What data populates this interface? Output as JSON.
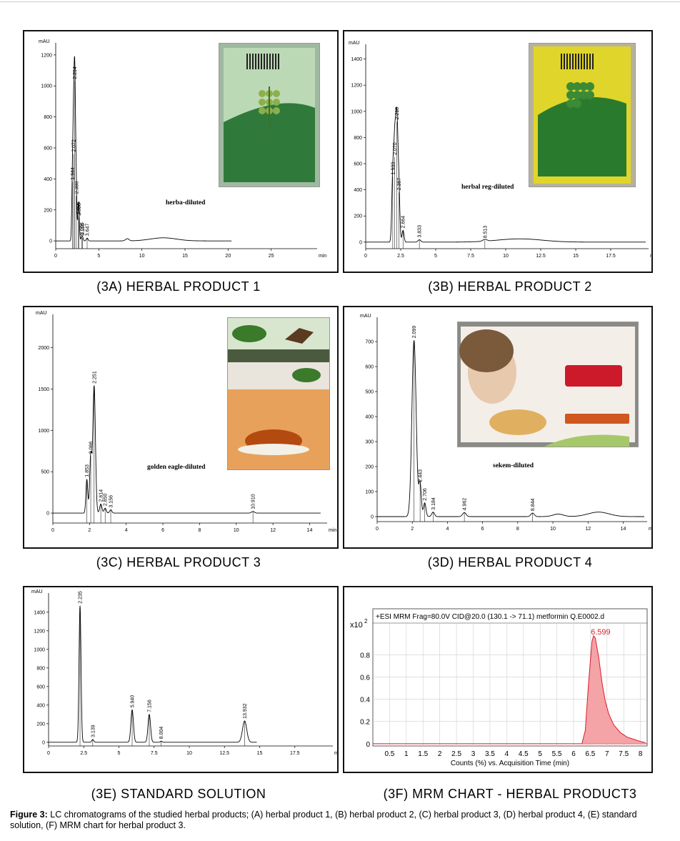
{
  "top_rule_color": "#cccccc",
  "panels": [
    {
      "id": "3A",
      "caption": "(3A) HERBAL PRODUCT 1",
      "yunit": "mAU",
      "xunit": "min",
      "annotation": "herba-diluted",
      "photo": {
        "theme": "green-leaf-box",
        "colors": [
          "#bcd9b5",
          "#2f7a3a"
        ],
        "icon": "herbal-package-photo"
      },
      "chart_data": {
        "type": "line",
        "xlim": [
          0,
          30
        ],
        "ylim": [
          -50,
          1250
        ],
        "xticks": [
          0,
          5,
          10,
          15,
          20,
          25
        ],
        "xtick_labels": [
          "0",
          "5",
          "10",
          "15",
          "20",
          "25"
        ],
        "yticks": [
          0,
          200,
          400,
          600,
          800,
          1000,
          1200
        ],
        "peaks": [
          {
            "x": 1.944,
            "y": 380,
            "w": 0.08,
            "label": "1.944"
          },
          {
            "x": 2.072,
            "y": 560,
            "w": 0.08,
            "label": "2.072"
          },
          {
            "x": 2.214,
            "y": 1030,
            "w": 0.09,
            "label": "2.214"
          },
          {
            "x": 2.388,
            "y": 290,
            "w": 0.07,
            "label": "2.388"
          },
          {
            "x": 2.605,
            "y": 160,
            "w": 0.07,
            "label": "2.605"
          },
          {
            "x": 2.696,
            "y": 150,
            "w": 0.07,
            "label": "2.696"
          },
          {
            "x": 3.006,
            "y": 25,
            "w": 0.08,
            "label": "3.006"
          },
          {
            "x": 3.12,
            "y": 20,
            "w": 0.08,
            "label": "3.120"
          },
          {
            "x": 3.647,
            "y": 18,
            "w": 0.1,
            "label": "3.647"
          },
          {
            "x": 8.3,
            "y": 14,
            "w": 0.2,
            "label": ""
          },
          {
            "x": 12.5,
            "y": 20,
            "w": 1.5,
            "label": ""
          }
        ],
        "xend": 20.4
      }
    },
    {
      "id": "3B",
      "caption": "(3B) HERBAL PRODUCT 2",
      "yunit": "mAU",
      "xunit": "min",
      "annotation": "herbal reg-diluted",
      "photo": {
        "theme": "yellow-box",
        "colors": [
          "#e0d52a",
          "#2a7a2e"
        ],
        "icon": "herbal-package-photo"
      },
      "chart_data": {
        "type": "line",
        "xlim": [
          0,
          20
        ],
        "ylim": [
          -50,
          1480
        ],
        "xticks": [
          0,
          2.5,
          5,
          7.5,
          10,
          12.5,
          15,
          17.5
        ],
        "xtick_labels": [
          "0",
          "2.5",
          "5",
          "7.5",
          "10",
          "12.5",
          "15",
          "17.5"
        ],
        "yticks": [
          0,
          200,
          400,
          600,
          800,
          1000,
          1200,
          1400
        ],
        "peaks": [
          {
            "x": 1.933,
            "y": 500,
            "w": 0.07,
            "label": "1.933"
          },
          {
            "x": 2.07,
            "y": 650,
            "w": 0.07,
            "label": "2.070"
          },
          {
            "x": 2.218,
            "y": 920,
            "w": 0.08,
            "label": "2.218"
          },
          {
            "x": 2.367,
            "y": 380,
            "w": 0.07,
            "label": "2.367"
          },
          {
            "x": 2.664,
            "y": 90,
            "w": 0.07,
            "label": "2.664"
          },
          {
            "x": 3.833,
            "y": 18,
            "w": 0.1,
            "label": "3.833"
          },
          {
            "x": 8.513,
            "y": 14,
            "w": 0.15,
            "label": "8.513"
          },
          {
            "x": 11.0,
            "y": 25,
            "w": 1.6,
            "label": ""
          }
        ],
        "xend": 20.0
      }
    },
    {
      "id": "3C",
      "caption": "(3C) HERBAL PRODUCT 3",
      "yunit": "mAU",
      "xunit": "min",
      "annotation": "golden eagle-diluted",
      "photo": {
        "theme": "herbs-tea-box",
        "colors": [
          "#e8a15a",
          "#3a7a2a"
        ],
        "icon": "herbal-package-photo"
      },
      "chart_data": {
        "type": "line",
        "xlim": [
          0,
          14.8
        ],
        "ylim": [
          -120,
          2350
        ],
        "xticks": [
          0,
          2,
          4,
          6,
          8,
          10,
          12,
          14
        ],
        "xtick_labels": [
          "0",
          "2",
          "4",
          "6",
          "8",
          "10",
          "12",
          "14"
        ],
        "yticks": [
          0,
          500,
          1000,
          1500,
          2000
        ],
        "peaks": [
          {
            "x": 1.853,
            "y": 410,
            "w": 0.05,
            "label": "1.853"
          },
          {
            "x": 2.066,
            "y": 690,
            "w": 0.06,
            "label": "2.066"
          },
          {
            "x": 2.251,
            "y": 1540,
            "w": 0.07,
            "label": "2.251"
          },
          {
            "x": 2.614,
            "y": 110,
            "w": 0.06,
            "label": "2.614"
          },
          {
            "x": 2.85,
            "y": 60,
            "w": 0.06,
            "label": "2.850"
          },
          {
            "x": 3.156,
            "y": 40,
            "w": 0.06,
            "label": "3.156"
          },
          {
            "x": 10.91,
            "y": 20,
            "w": 0.08,
            "label": "10.910"
          }
        ],
        "xend": 14.6
      }
    },
    {
      "id": "3D",
      "caption": "(3D) HERBAL PRODUCT 4",
      "yunit": "mAU",
      "xunit": "min",
      "annotation": "sekem-diluted",
      "photo": {
        "theme": "herbal-tea-box",
        "colors": [
          "#f4eee8",
          "#cc1a2a"
        ],
        "icon": "herbal-package-photo"
      },
      "chart_data": {
        "type": "line",
        "xlim": [
          0,
          15.2
        ],
        "ylim": [
          -20,
          780
        ],
        "xticks": [
          0,
          2,
          4,
          6,
          8,
          10,
          12,
          14
        ],
        "xtick_labels": [
          "0",
          "2",
          "4",
          "6",
          "8",
          "10",
          "12",
          "14"
        ],
        "yticks": [
          0,
          100,
          200,
          300,
          400,
          500,
          600,
          700
        ],
        "peaks": [
          {
            "x": 2.099,
            "y": 705,
            "w": 0.12,
            "label": "2.099"
          },
          {
            "x": 2.443,
            "y": 130,
            "w": 0.07,
            "label": "2.443"
          },
          {
            "x": 2.706,
            "y": 55,
            "w": 0.07,
            "label": "2.706"
          },
          {
            "x": 3.184,
            "y": 18,
            "w": 0.08,
            "label": "3.184"
          },
          {
            "x": 4.962,
            "y": 16,
            "w": 0.1,
            "label": "4.962"
          },
          {
            "x": 8.844,
            "y": 14,
            "w": 0.1,
            "label": "8.844"
          },
          {
            "x": 10.3,
            "y": 10,
            "w": 0.3,
            "label": ""
          },
          {
            "x": 12.6,
            "y": 18,
            "w": 0.6,
            "label": ""
          }
        ],
        "xend": 15.2
      }
    },
    {
      "id": "3E",
      "caption": "(3E) STANDARD SOLUTION",
      "yunit": "mAU",
      "xunit": "min",
      "annotation": "",
      "chart_data": {
        "type": "line",
        "xlim": [
          0,
          20
        ],
        "ylim": [
          -40,
          1560
        ],
        "xticks": [
          0,
          2.5,
          5,
          7.5,
          10,
          12.5,
          15,
          17.5
        ],
        "xtick_labels": [
          "0",
          "2.5",
          "5",
          "7.5",
          "10",
          "12.5",
          "15",
          "17.5"
        ],
        "yticks": [
          0,
          200,
          400,
          600,
          800,
          1000,
          1200,
          1400
        ],
        "peaks": [
          {
            "x": 2.235,
            "y": 1470,
            "w": 0.07,
            "label": "2.235"
          },
          {
            "x": 3.139,
            "y": 30,
            "w": 0.07,
            "label": "3.139"
          },
          {
            "x": 5.94,
            "y": 350,
            "w": 0.09,
            "label": "5.940"
          },
          {
            "x": 7.156,
            "y": 300,
            "w": 0.09,
            "label": "7.156"
          },
          {
            "x": 8.004,
            "y": 12,
            "w": 0.06,
            "label": "8.004"
          },
          {
            "x": 13.932,
            "y": 230,
            "w": 0.15,
            "label": "13.932"
          }
        ],
        "xend": 14.8
      }
    },
    {
      "id": "3F",
      "caption": "(3F) MRM CHART - HERBAL PRODUCT3",
      "title": "+ESI MRM Frag=80.0V CID@20.0 (130.1 -> 71.1) metformin Q.E0002.d",
      "y_multiplier": "x10",
      "y_exponent": "2",
      "peak_label": "6.599",
      "xlabel": "Counts (%) vs. Acquisition Time (min)",
      "fill_color": "#f4a3a6",
      "line_color": "#d81e2a",
      "chart_data": {
        "type": "area",
        "xlim": [
          0,
          8.2
        ],
        "ylim": [
          -0.02,
          1.02
        ],
        "xticks": [
          0.5,
          1,
          1.5,
          2,
          2.5,
          3,
          3.5,
          4,
          4.5,
          5,
          5.5,
          6,
          6.5,
          7,
          7.5,
          8
        ],
        "xtick_labels": [
          "0.5",
          "1",
          "1.5",
          "2",
          "2.5",
          "3",
          "3.5",
          "4",
          "4.5",
          "5",
          "5.5",
          "6",
          "6.5",
          "7",
          "7.5",
          "8"
        ],
        "yticks": [
          0,
          0.2,
          0.4,
          0.6,
          0.8
        ],
        "ytick_labels": [
          "0",
          "0.2",
          "0.4",
          "0.6",
          "0.8"
        ],
        "x": [
          6.25,
          6.35,
          6.45,
          6.55,
          6.6,
          6.65,
          6.75,
          6.85,
          6.95,
          7.05,
          7.2,
          7.4,
          7.6,
          7.8,
          8.0,
          8.15
        ],
        "y": [
          0.0,
          0.12,
          0.55,
          0.92,
          0.97,
          0.95,
          0.78,
          0.55,
          0.38,
          0.27,
          0.17,
          0.1,
          0.06,
          0.04,
          0.02,
          0.01
        ]
      }
    }
  ],
  "figure_caption": {
    "label": "Figure 3:",
    "text": "LC chromatograms of the studied herbal products; (A) herbal product 1, (B) herbal product 2, (C) herbal product 3, (D) herbal product 4, (E) standard solution, (F) MRM chart for herbal product 3."
  }
}
